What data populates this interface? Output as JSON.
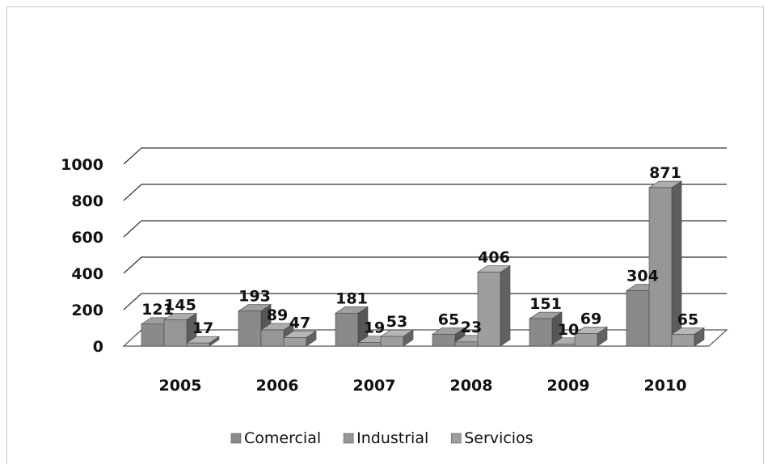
{
  "chart_data": {
    "type": "bar",
    "title": "",
    "xlabel": "",
    "ylabel": "",
    "categories": [
      "2005",
      "2006",
      "2007",
      "2008",
      "2009",
      "2010"
    ],
    "series": [
      {
        "name": "Comercial",
        "values": [
          121,
          193,
          181,
          65,
          151,
          304
        ],
        "color": "#8a8a8a"
      },
      {
        "name": "Industrial",
        "values": [
          145,
          89,
          19,
          23,
          10,
          871
        ],
        "color": "#969696"
      },
      {
        "name": "Servicios",
        "values": [
          17,
          47,
          53,
          406,
          69,
          65
        ],
        "color": "#9e9e9e"
      }
    ],
    "yticks": [
      0,
      200,
      400,
      600,
      800,
      1000
    ],
    "ylim": [
      0,
      1000
    ],
    "grid": true,
    "legend": "bottom",
    "style": "3d-clustered-column"
  }
}
